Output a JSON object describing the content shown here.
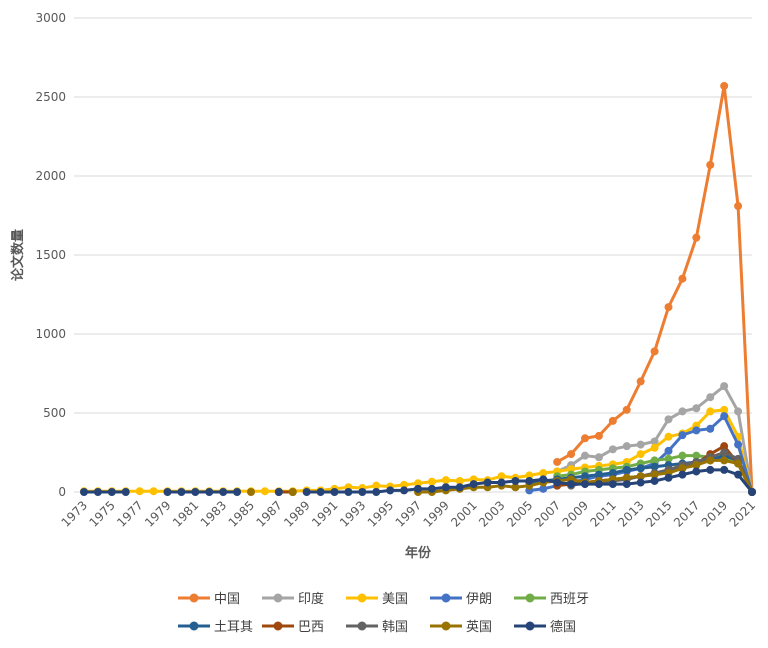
{
  "chart_data": {
    "type": "line",
    "xlabel": "年份",
    "ylabel": "论文数量",
    "ylim": [
      0,
      3000
    ],
    "yticks": [
      "0",
      "500",
      "1000",
      "1500",
      "2000",
      "2500",
      "3000"
    ],
    "x": [
      1973,
      1974,
      1975,
      1976,
      1977,
      1978,
      1979,
      1980,
      1981,
      1982,
      1983,
      1984,
      1985,
      1986,
      1987,
      1988,
      1989,
      1990,
      1991,
      1992,
      1993,
      1994,
      1995,
      1996,
      1997,
      1998,
      1999,
      2000,
      2001,
      2002,
      2003,
      2004,
      2005,
      2006,
      2007,
      2008,
      2009,
      2010,
      2011,
      2012,
      2013,
      2014,
      2015,
      2016,
      2017,
      2018,
      2019,
      2020,
      2021
    ],
    "xtick_labels": [
      "1973",
      "1975",
      "1977",
      "1979",
      "1981",
      "1983",
      "1985",
      "1987",
      "1989",
      "1991",
      "1993",
      "1995",
      "1997",
      "1999",
      "2001",
      "2003",
      "2005",
      "2007",
      "2009",
      "2011",
      "2013",
      "2015",
      "2017",
      "2019",
      "2021"
    ],
    "grid": "horizontal",
    "legend_position": "bottom",
    "series": [
      {
        "name": "中国",
        "color": "#ED7D31",
        "values": [
          null,
          null,
          null,
          null,
          null,
          null,
          null,
          null,
          null,
          null,
          null,
          null,
          null,
          null,
          null,
          null,
          null,
          null,
          null,
          null,
          null,
          null,
          null,
          null,
          null,
          null,
          null,
          null,
          null,
          null,
          null,
          null,
          null,
          null,
          190,
          240,
          340,
          355,
          450,
          520,
          700,
          890,
          1170,
          1350,
          1610,
          2070,
          2570,
          1810,
          0
        ]
      },
      {
        "name": "印度",
        "color": "#A5A5A5",
        "values": [
          null,
          null,
          null,
          null,
          null,
          null,
          null,
          null,
          null,
          null,
          null,
          null,
          null,
          null,
          null,
          null,
          null,
          null,
          null,
          null,
          null,
          null,
          null,
          null,
          null,
          null,
          null,
          null,
          null,
          null,
          null,
          null,
          null,
          null,
          130,
          170,
          230,
          220,
          270,
          290,
          300,
          320,
          460,
          510,
          530,
          600,
          670,
          510,
          0
        ]
      },
      {
        "name": "美国",
        "color": "#FFC000",
        "values": [
          5,
          5,
          5,
          5,
          5,
          5,
          5,
          5,
          5,
          5,
          5,
          5,
          5,
          5,
          5,
          5,
          10,
          10,
          20,
          30,
          25,
          40,
          35,
          45,
          55,
          65,
          75,
          70,
          80,
          75,
          100,
          90,
          105,
          120,
          130,
          145,
          155,
          165,
          175,
          190,
          240,
          280,
          350,
          370,
          420,
          510,
          520,
          350,
          0
        ]
      },
      {
        "name": "伊朗",
        "color": "#4472C4",
        "values": [
          null,
          null,
          null,
          null,
          null,
          null,
          null,
          null,
          null,
          null,
          null,
          null,
          null,
          null,
          null,
          null,
          null,
          null,
          null,
          null,
          null,
          null,
          null,
          null,
          null,
          null,
          null,
          null,
          null,
          null,
          null,
          null,
          10,
          20,
          40,
          60,
          80,
          100,
          110,
          130,
          150,
          180,
          260,
          360,
          390,
          400,
          480,
          300,
          0
        ]
      },
      {
        "name": "西班牙",
        "color": "#70AD47",
        "values": [
          null,
          null,
          null,
          null,
          null,
          null,
          null,
          null,
          null,
          null,
          null,
          null,
          null,
          null,
          null,
          null,
          null,
          null,
          null,
          null,
          null,
          null,
          null,
          null,
          null,
          null,
          null,
          null,
          null,
          null,
          null,
          null,
          null,
          null,
          100,
          110,
          130,
          140,
          150,
          160,
          180,
          200,
          210,
          230,
          230,
          220,
          220,
          190,
          0
        ]
      },
      {
        "name": "土耳其",
        "color": "#255E91",
        "values": [
          null,
          null,
          null,
          null,
          null,
          null,
          null,
          null,
          null,
          null,
          null,
          null,
          null,
          null,
          null,
          null,
          null,
          null,
          null,
          null,
          null,
          null,
          null,
          null,
          null,
          null,
          null,
          null,
          null,
          null,
          null,
          null,
          60,
          70,
          80,
          90,
          100,
          110,
          120,
          140,
          150,
          160,
          170,
          180,
          190,
          200,
          230,
          200,
          0
        ]
      },
      {
        "name": "巴西",
        "color": "#9E480E",
        "values": [
          null,
          null,
          null,
          null,
          null,
          null,
          null,
          null,
          null,
          null,
          null,
          null,
          null,
          null,
          0,
          0,
          null,
          null,
          null,
          null,
          null,
          null,
          null,
          null,
          null,
          null,
          null,
          null,
          null,
          null,
          null,
          null,
          null,
          null,
          40,
          50,
          60,
          70,
          80,
          90,
          100,
          110,
          130,
          150,
          180,
          240,
          290,
          180,
          0
        ]
      },
      {
        "name": "韩国",
        "color": "#636363",
        "values": [
          null,
          null,
          null,
          null,
          null,
          null,
          null,
          null,
          null,
          null,
          null,
          null,
          null,
          null,
          null,
          null,
          null,
          null,
          null,
          null,
          null,
          null,
          null,
          null,
          null,
          null,
          null,
          null,
          null,
          null,
          null,
          null,
          null,
          null,
          null,
          40,
          60,
          60,
          70,
          80,
          100,
          120,
          140,
          170,
          190,
          220,
          250,
          210,
          0
        ]
      },
      {
        "name": "英国",
        "color": "#997300",
        "values": [
          null,
          null,
          null,
          null,
          null,
          null,
          null,
          null,
          null,
          null,
          null,
          null,
          0,
          null,
          null,
          0,
          null,
          null,
          null,
          null,
          null,
          null,
          null,
          null,
          0,
          0,
          10,
          20,
          30,
          30,
          40,
          30,
          40,
          60,
          70,
          80,
          60,
          70,
          80,
          90,
          100,
          110,
          120,
          150,
          170,
          200,
          200,
          180,
          0
        ]
      },
      {
        "name": "德国",
        "color": "#264478",
        "values": [
          0,
          0,
          0,
          0,
          null,
          null,
          0,
          0,
          0,
          0,
          0,
          0,
          null,
          null,
          0,
          null,
          0,
          0,
          0,
          0,
          0,
          0,
          10,
          10,
          20,
          20,
          30,
          30,
          50,
          60,
          60,
          70,
          70,
          80,
          60,
          50,
          50,
          50,
          50,
          50,
          60,
          70,
          90,
          110,
          130,
          140,
          140,
          110,
          0
        ]
      }
    ]
  }
}
